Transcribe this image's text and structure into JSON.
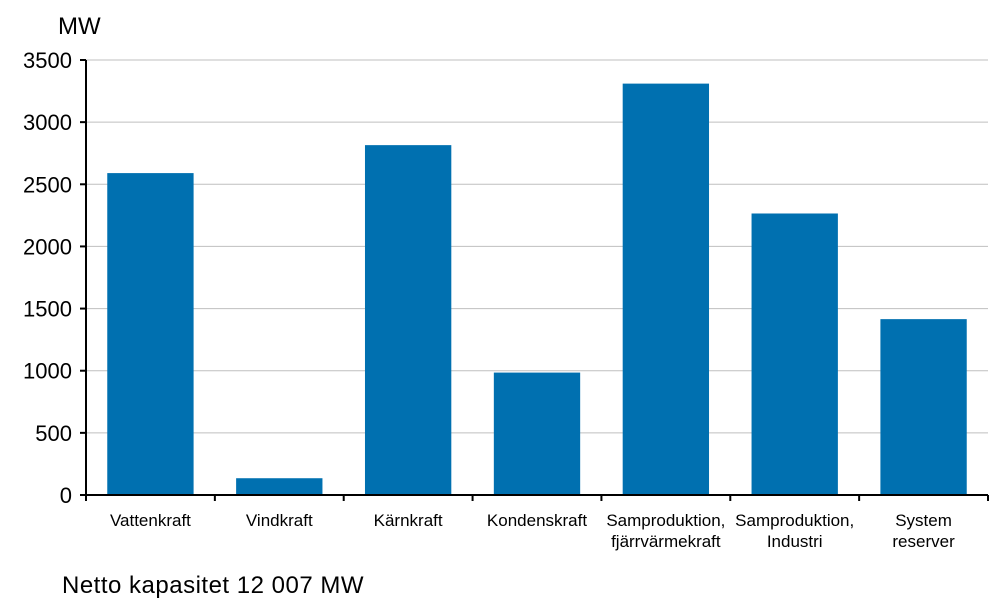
{
  "chart_data": {
    "type": "bar",
    "unit_label": "MW",
    "categories": [
      [
        "Vattenkraft"
      ],
      [
        "Vindkraft"
      ],
      [
        "Kärnkraft"
      ],
      [
        "Kondenskraft"
      ],
      [
        "Samproduktion,",
        "fjärrvärmekraft"
      ],
      [
        "Samproduktion,",
        "Industri"
      ],
      [
        "System",
        "reserver"
      ]
    ],
    "values": [
      2590,
      135,
      2815,
      985,
      3310,
      2265,
      1415
    ],
    "ylim": [
      0,
      3500
    ],
    "yticks": [
      0,
      500,
      1000,
      1500,
      2000,
      2500,
      3000,
      3500
    ],
    "grid": true,
    "bar_color": "#0070b0",
    "grid_color": "#bfbfbf",
    "axis_color": "#000000"
  },
  "footer_note": "Netto kapasitet  12 007 MW"
}
